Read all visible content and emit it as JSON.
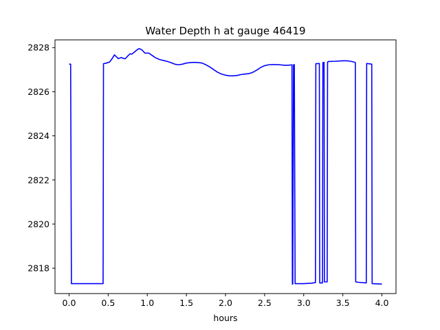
{
  "chart_data": {
    "type": "line",
    "title": "Water Depth h at gauge 46419",
    "xlabel": "hours",
    "ylabel": "",
    "xlim": [
      -0.18,
      4.18
    ],
    "ylim": [
      2816.85,
      2828.35
    ],
    "xticks": [
      0.0,
      0.5,
      1.0,
      1.5,
      2.0,
      2.5,
      3.0,
      3.5,
      4.0
    ],
    "xtick_labels": [
      "0.0",
      "0.5",
      "1.0",
      "1.5",
      "2.0",
      "2.5",
      "3.0",
      "3.5",
      "4.0"
    ],
    "yticks": [
      2818,
      2820,
      2822,
      2824,
      2826,
      2828
    ],
    "ytick_labels": [
      "2818",
      "2820",
      "2822",
      "2824",
      "2826",
      "2828"
    ],
    "grid": false,
    "legend": null,
    "series": [
      {
        "color": "#0000ff",
        "x": [
          0.0,
          0.02,
          0.03,
          0.1,
          0.2,
          0.3,
          0.4,
          0.435,
          0.44,
          0.48,
          0.52,
          0.55,
          0.58,
          0.6,
          0.63,
          0.67,
          0.7,
          0.72,
          0.75,
          0.78,
          0.8,
          0.83,
          0.88,
          0.9,
          0.93,
          0.97,
          1.02,
          1.06,
          1.1,
          1.15,
          1.2,
          1.25,
          1.3,
          1.35,
          1.4,
          1.45,
          1.5,
          1.55,
          1.6,
          1.65,
          1.7,
          1.75,
          1.8,
          1.85,
          1.9,
          1.95,
          2.0,
          2.05,
          2.1,
          2.15,
          2.2,
          2.25,
          2.3,
          2.35,
          2.4,
          2.45,
          2.5,
          2.55,
          2.6,
          2.65,
          2.7,
          2.75,
          2.8,
          2.85,
          2.855,
          2.86,
          2.87,
          2.88,
          2.89,
          2.9,
          3.0,
          3.1,
          3.15,
          3.155,
          3.2,
          3.205,
          3.24,
          3.245,
          3.26,
          3.265,
          3.3,
          3.305,
          3.31,
          3.315,
          3.4,
          3.5,
          3.55,
          3.6,
          3.66,
          3.665,
          3.7,
          3.8,
          3.805,
          3.87,
          3.875,
          4.0
        ],
        "y": [
          2827.25,
          2827.25,
          2817.3,
          2817.3,
          2817.3,
          2817.3,
          2817.3,
          2817.3,
          2827.27,
          2827.3,
          2827.35,
          2827.5,
          2827.67,
          2827.6,
          2827.5,
          2827.55,
          2827.5,
          2827.5,
          2827.62,
          2827.72,
          2827.7,
          2827.78,
          2827.93,
          2827.95,
          2827.9,
          2827.75,
          2827.75,
          2827.65,
          2827.55,
          2827.47,
          2827.42,
          2827.38,
          2827.32,
          2827.25,
          2827.22,
          2827.25,
          2827.3,
          2827.32,
          2827.33,
          2827.32,
          2827.3,
          2827.22,
          2827.12,
          2827.0,
          2826.88,
          2826.8,
          2826.75,
          2826.72,
          2826.72,
          2826.74,
          2826.78,
          2826.8,
          2826.82,
          2826.88,
          2826.98,
          2827.1,
          2827.18,
          2827.22,
          2827.23,
          2827.23,
          2827.22,
          2827.2,
          2827.2,
          2827.22,
          2817.28,
          2817.28,
          2827.22,
          2827.23,
          2817.3,
          2817.3,
          2817.3,
          2817.32,
          2817.35,
          2827.27,
          2827.28,
          2817.33,
          2817.33,
          2827.32,
          2827.33,
          2817.38,
          2817.38,
          2827.35,
          2827.35,
          2827.37,
          2827.38,
          2827.4,
          2827.4,
          2827.38,
          2827.33,
          2817.38,
          2817.36,
          2817.33,
          2827.28,
          2827.25,
          2817.3,
          2817.28
        ]
      }
    ]
  }
}
